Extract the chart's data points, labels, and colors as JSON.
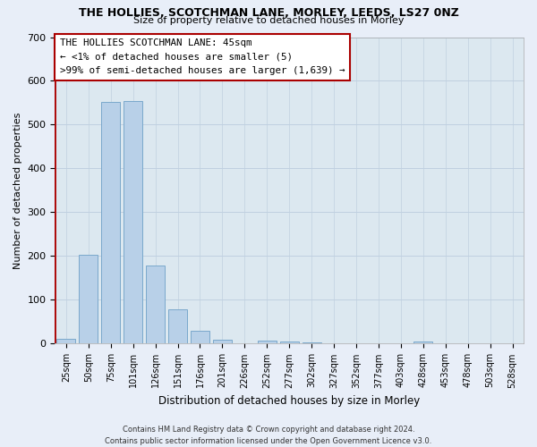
{
  "title": "THE HOLLIES, SCOTCHMAN LANE, MORLEY, LEEDS, LS27 0NZ",
  "subtitle": "Size of property relative to detached houses in Morley",
  "xlabel": "Distribution of detached houses by size in Morley",
  "ylabel": "Number of detached properties",
  "bar_labels": [
    "25sqm",
    "50sqm",
    "75sqm",
    "101sqm",
    "126sqm",
    "151sqm",
    "176sqm",
    "201sqm",
    "226sqm",
    "252sqm",
    "277sqm",
    "302sqm",
    "327sqm",
    "352sqm",
    "377sqm",
    "403sqm",
    "428sqm",
    "453sqm",
    "478sqm",
    "503sqm",
    "528sqm"
  ],
  "bar_values": [
    12,
    203,
    553,
    555,
    178,
    78,
    30,
    10,
    0,
    8,
    5,
    3,
    0,
    0,
    0,
    0,
    5,
    0,
    0,
    0,
    0
  ],
  "bar_color": "#b8d0e8",
  "bar_edge_color": "#7aa8cc",
  "highlight_color": "#aa0000",
  "ylim": [
    0,
    700
  ],
  "yticks": [
    0,
    100,
    200,
    300,
    400,
    500,
    600,
    700
  ],
  "annotation_title": "THE HOLLIES SCOTCHMAN LANE: 45sqm",
  "annotation_line1": "← <1% of detached houses are smaller (5)",
  "annotation_line2": ">99% of semi-detached houses are larger (1,639) →",
  "footer_line1": "Contains HM Land Registry data © Crown copyright and database right 2024.",
  "footer_line2": "Contains public sector information licensed under the Open Government Licence v3.0.",
  "bg_color": "#e8eef8",
  "plot_bg_color": "#dce8f0",
  "grid_color": "#c0d0e0",
  "red_line_x": -0.08
}
